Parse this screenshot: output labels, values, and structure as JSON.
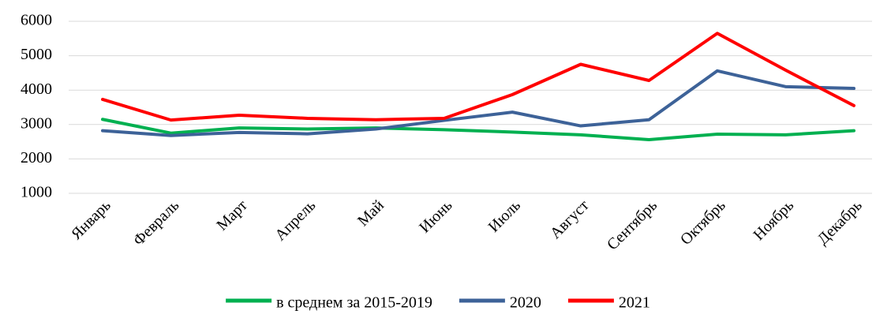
{
  "chart_data": {
    "type": "line",
    "categories": [
      "Январь",
      "Февраль",
      "Март",
      "Апрель",
      "Май",
      "Июнь",
      "Июль",
      "Август",
      "Сентябрь",
      "Октябрь",
      "Ноябрь",
      "Декабрь"
    ],
    "series": [
      {
        "name": "в среднем за 2015-2019",
        "color": "#00b050",
        "values": [
          3150,
          2750,
          2900,
          2870,
          2900,
          2850,
          2780,
          2700,
          2560,
          2720,
          2700,
          2820
        ]
      },
      {
        "name": "2020",
        "color": "#3d6298",
        "values": [
          2820,
          2680,
          2770,
          2730,
          2870,
          3120,
          3360,
          2960,
          3140,
          4560,
          4100,
          4050
        ]
      },
      {
        "name": "2021",
        "color": "#ff0000",
        "values": [
          3730,
          3130,
          3270,
          3180,
          3140,
          3180,
          3870,
          4750,
          4280,
          5650,
          4580,
          3550
        ]
      }
    ],
    "ylim": [
      1000,
      6000
    ],
    "yticks": [
      1000,
      2000,
      3000,
      4000,
      5000,
      6000
    ],
    "grid": true,
    "legend": "bottom"
  }
}
